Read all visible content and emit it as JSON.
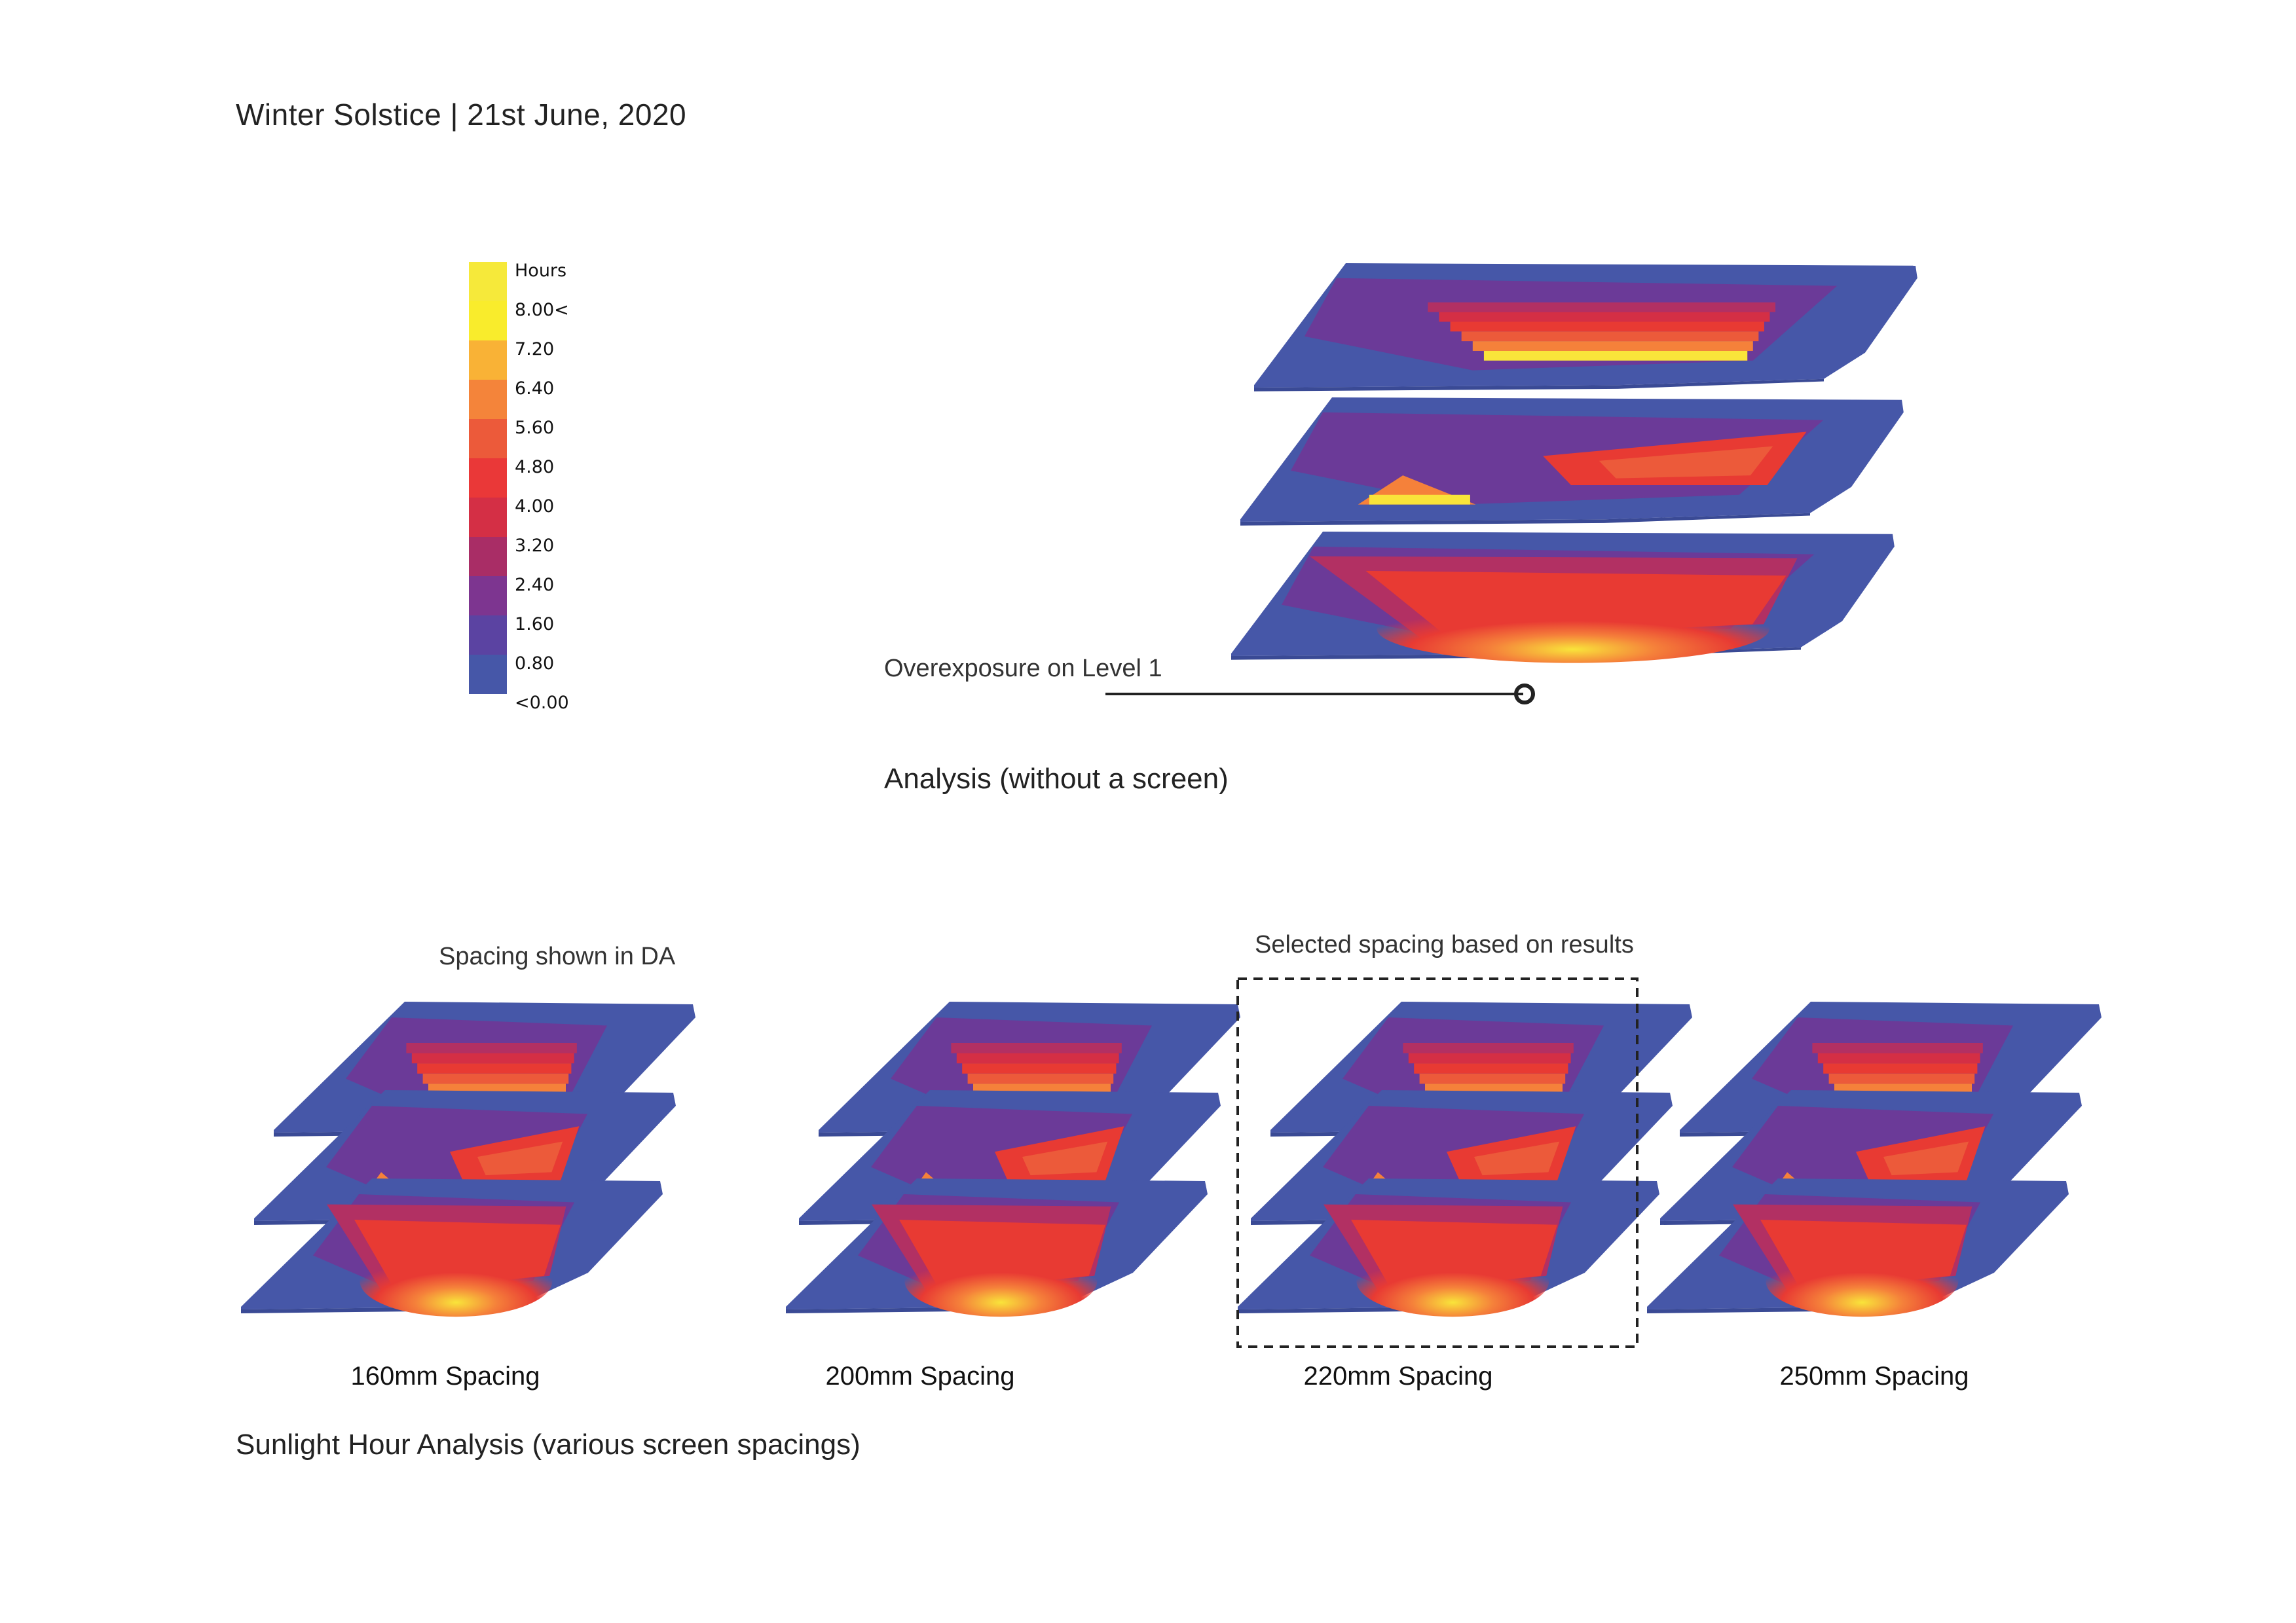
{
  "title": "Winter Solstice  | 21st June, 2020",
  "legend": {
    "items": [
      {
        "label": "Hours",
        "color": "#f6e93a"
      },
      {
        "label": "8.00<",
        "color": "#f9ec2c"
      },
      {
        "label": "7.20",
        "color": "#f9b236"
      },
      {
        "label": "6.40",
        "color": "#f4843a"
      },
      {
        "label": "5.60",
        "color": "#ec5a3a"
      },
      {
        "label": "4.80",
        "color": "#ea3838"
      },
      {
        "label": "4.00",
        "color": "#d42f45"
      },
      {
        "label": "3.20",
        "color": "#a92d66"
      },
      {
        "label": "2.40",
        "color": "#7d3590"
      },
      {
        "label": "1.60",
        "color": "#5b43a2"
      },
      {
        "label": "0.80",
        "color": "#4657a8"
      },
      {
        "label": "<0.00",
        "color": "#4657a8"
      }
    ]
  },
  "top_analysis": {
    "annotation": "Overexposure on Level 1",
    "caption": "Analysis (without a screen)"
  },
  "spacing_section": {
    "note_left": "Spacing shown in DA",
    "note_selected": "Selected spacing based on results",
    "labels": [
      "160mm Spacing",
      "200mm Spacing",
      "220mm Spacing",
      "250mm Spacing"
    ],
    "caption": "Sunlight Hour Analysis (various screen spacings)"
  },
  "colors": {
    "base_blue": "#4657a8",
    "purple": "#6b3a98",
    "magenta": "#b23063",
    "red": "#e83a33",
    "orange": "#f5813a",
    "yellow": "#f9e43a"
  }
}
